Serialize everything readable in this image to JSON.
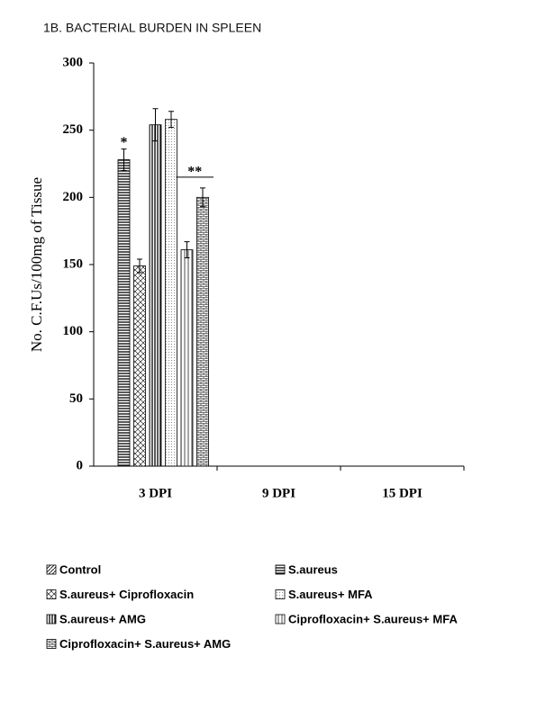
{
  "chart_data": {
    "type": "bar",
    "title": "1B. BACTERIAL BURDEN IN SPLEEN",
    "y_label": "No. C.F.Us/100mg of Tissue",
    "categories": [
      "3 DPI",
      "9 DPI",
      "15 DPI"
    ],
    "ylim": [
      0,
      300
    ],
    "yticks": [
      0,
      50,
      100,
      150,
      200,
      250,
      300
    ],
    "series": [
      {
        "name": "Control",
        "pattern": "diagonal",
        "color": "#000000",
        "values": [
          0,
          0,
          0
        ],
        "errors": [
          null,
          null,
          null
        ]
      },
      {
        "name": "S.aureus",
        "pattern": "horizontal",
        "color": "#000000",
        "values": [
          228,
          0,
          0
        ],
        "errors": [
          8,
          null,
          null
        ]
      },
      {
        "name": "S.aureus+ Ciprofloxacin",
        "pattern": "crosshatch",
        "color": "#000000",
        "values": [
          149,
          0,
          0
        ],
        "errors": [
          5,
          null,
          null
        ]
      },
      {
        "name": "S.aureus+ MFA",
        "pattern": "dots",
        "color": "#000000",
        "values": [
          258,
          0,
          0
        ],
        "errors": [
          6,
          null,
          null
        ]
      },
      {
        "name": "S.aureus+ AMG",
        "pattern": "vertical-dense",
        "color": "#000000",
        "values": [
          254,
          0,
          0
        ],
        "errors": [
          12,
          null,
          null
        ]
      },
      {
        "name": "Ciprofloxacin+ S.aureus+ MFA",
        "pattern": "vertical",
        "color": "#000000",
        "values": [
          161,
          0,
          0
        ],
        "errors": [
          6,
          null,
          null
        ]
      },
      {
        "name": "Ciprofloxacin+ S.aureus+ AMG",
        "pattern": "brick",
        "color": "#000000",
        "values": [
          200,
          0,
          0
        ],
        "errors": [
          7,
          null,
          null
        ]
      }
    ],
    "bar_order": [
      0,
      1,
      2,
      4,
      3,
      5,
      6
    ],
    "annotations": [
      {
        "text": "*",
        "series": 1,
        "category": 0
      },
      {
        "text": "**",
        "series": [
          5,
          6
        ],
        "category": 0
      }
    ],
    "legend": "bottom"
  }
}
